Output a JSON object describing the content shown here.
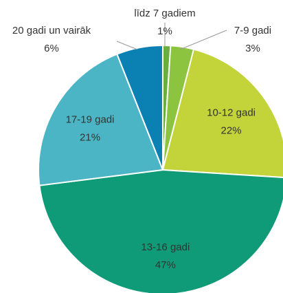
{
  "chart_data": {
    "type": "pie",
    "categories": [
      "līdz 7 gadiem",
      "7-9 gadi",
      "10-12 gadi",
      "13-16 gadi",
      "17-19 gadi",
      "20 gadi un vairāk"
    ],
    "values": [
      1,
      3,
      22,
      47,
      21,
      6
    ],
    "value_labels": [
      "1%",
      "3%",
      "22%",
      "47%",
      "21%",
      "6%"
    ],
    "colors": [
      "#6aaf3d",
      "#8cc43f",
      "#c3d33a",
      "#0f9a78",
      "#4cb5c5",
      "#0b80b3"
    ]
  }
}
